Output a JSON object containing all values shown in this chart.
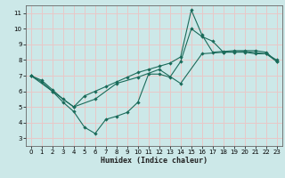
{
  "xlabel": "Humidex (Indice chaleur)",
  "bg_color": "#cce8e8",
  "grid_color": "#e8c8c8",
  "line_color": "#1a6b5a",
  "xlim": [
    -0.5,
    23.5
  ],
  "ylim": [
    2.5,
    11.5
  ],
  "xticks": [
    0,
    1,
    2,
    3,
    4,
    5,
    6,
    7,
    8,
    9,
    10,
    11,
    12,
    13,
    14,
    15,
    16,
    17,
    18,
    19,
    20,
    21,
    22,
    23
  ],
  "yticks": [
    3,
    4,
    5,
    6,
    7,
    8,
    9,
    10,
    11
  ],
  "line1_x": [
    0,
    1,
    2,
    3,
    4,
    5,
    6,
    7,
    8,
    9,
    10,
    11,
    12,
    13,
    14,
    15,
    16,
    17,
    18,
    19,
    20,
    21,
    22,
    23
  ],
  "line1_y": [
    7.0,
    6.7,
    6.1,
    5.5,
    5.0,
    5.7,
    6.0,
    6.3,
    6.6,
    6.9,
    7.2,
    7.4,
    7.6,
    7.8,
    8.2,
    11.2,
    9.6,
    8.5,
    8.55,
    8.6,
    8.6,
    8.6,
    8.5,
    7.9
  ],
  "line2_x": [
    0,
    1,
    2,
    3,
    4,
    5,
    6,
    7,
    8,
    9,
    10,
    11,
    12,
    13,
    14,
    15,
    16,
    17,
    18,
    19,
    20,
    21,
    22,
    23
  ],
  "line2_y": [
    7.0,
    6.6,
    6.0,
    5.3,
    4.7,
    3.7,
    3.3,
    4.2,
    4.4,
    4.65,
    5.3,
    7.1,
    7.1,
    6.9,
    7.9,
    10.0,
    9.5,
    9.2,
    8.5,
    8.5,
    8.5,
    8.4,
    8.4,
    8.0
  ],
  "line3_x": [
    0,
    2,
    4,
    6,
    8,
    10,
    12,
    14,
    16,
    18,
    20,
    22,
    23
  ],
  "line3_y": [
    7.0,
    6.0,
    5.0,
    5.5,
    6.5,
    6.9,
    7.4,
    6.5,
    8.4,
    8.5,
    8.55,
    8.4,
    7.9
  ]
}
